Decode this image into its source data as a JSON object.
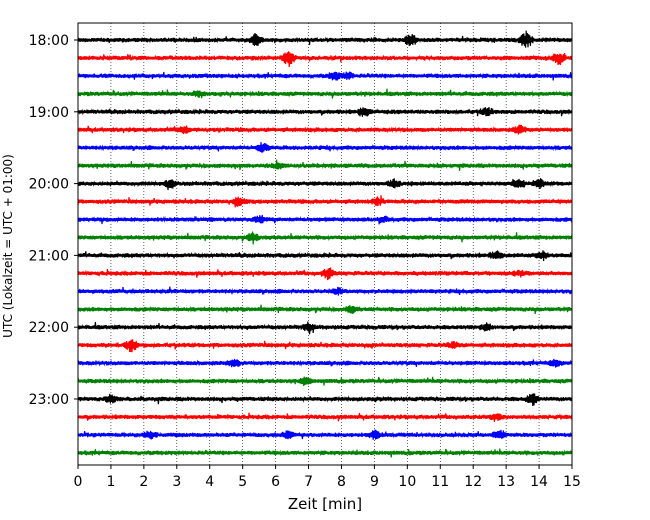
{
  "chart_data": {
    "type": "line",
    "title": "",
    "xlabel": "Zeit  [min]",
    "ylabel": "UTC (Lokalzeit = UTC + 01:00)",
    "xlim": [
      0,
      15
    ],
    "xticks": [
      0,
      1,
      2,
      3,
      4,
      5,
      6,
      7,
      8,
      9,
      10,
      11,
      12,
      13,
      14,
      15
    ],
    "grid": "vertical dotted",
    "legend": "none",
    "row_minutes": 15,
    "yticks": [
      {
        "label": "18:00",
        "row": 0
      },
      {
        "label": "19:00",
        "row": 4
      },
      {
        "label": "20:00",
        "row": 8
      },
      {
        "label": "21:00",
        "row": 12
      },
      {
        "label": "22:00",
        "row": 16
      },
      {
        "label": "23:00",
        "row": 20
      }
    ],
    "trace_colors": [
      "#000000",
      "#ff0000",
      "#0000ff",
      "#008000"
    ],
    "traces": [
      {
        "start": "18:00",
        "events": [
          {
            "t": 5.4,
            "amp": 1.0
          },
          {
            "t": 10.1,
            "amp": 1.0
          },
          {
            "t": 13.6,
            "amp": 1.3
          }
        ]
      },
      {
        "start": "18:15",
        "events": [
          {
            "t": 6.4,
            "amp": 1.3
          },
          {
            "t": 14.6,
            "amp": 1.0
          }
        ]
      },
      {
        "start": "18:30",
        "events": [
          {
            "t": 7.8,
            "amp": 0.6
          },
          {
            "t": 8.2,
            "amp": 0.6
          }
        ]
      },
      {
        "start": "18:45",
        "events": [
          {
            "t": 3.7,
            "amp": 0.5
          }
        ]
      },
      {
        "start": "19:00",
        "events": [
          {
            "t": 8.7,
            "amp": 0.8
          },
          {
            "t": 12.4,
            "amp": 0.7
          }
        ]
      },
      {
        "start": "19:15",
        "events": [
          {
            "t": 3.2,
            "amp": 0.6
          },
          {
            "t": 13.4,
            "amp": 0.7
          }
        ]
      },
      {
        "start": "19:30",
        "events": [
          {
            "t": 5.6,
            "amp": 0.7
          }
        ]
      },
      {
        "start": "19:45",
        "events": [
          {
            "t": 6.1,
            "amp": 0.5
          }
        ]
      },
      {
        "start": "20:00",
        "events": [
          {
            "t": 2.8,
            "amp": 0.6
          },
          {
            "t": 9.6,
            "amp": 0.7
          },
          {
            "t": 13.4,
            "amp": 0.8
          },
          {
            "t": 14.0,
            "amp": 0.7
          }
        ]
      },
      {
        "start": "20:15",
        "events": [
          {
            "t": 4.9,
            "amp": 0.9
          },
          {
            "t": 9.1,
            "amp": 0.5
          }
        ]
      },
      {
        "start": "20:30",
        "events": [
          {
            "t": 5.5,
            "amp": 0.6
          },
          {
            "t": 9.3,
            "amp": 0.5
          }
        ]
      },
      {
        "start": "20:45",
        "events": [
          {
            "t": 5.3,
            "amp": 0.8
          }
        ]
      },
      {
        "start": "21:00",
        "events": [
          {
            "t": 12.7,
            "amp": 0.7
          },
          {
            "t": 14.1,
            "amp": 0.6
          }
        ]
      },
      {
        "start": "21:15",
        "events": [
          {
            "t": 7.6,
            "amp": 0.9
          },
          {
            "t": 13.4,
            "amp": 0.5
          }
        ]
      },
      {
        "start": "21:30",
        "events": [
          {
            "t": 7.9,
            "amp": 0.5
          }
        ]
      },
      {
        "start": "21:45",
        "events": [
          {
            "t": 8.3,
            "amp": 0.5
          }
        ]
      },
      {
        "start": "22:00",
        "events": [
          {
            "t": 7.0,
            "amp": 0.7
          },
          {
            "t": 12.4,
            "amp": 0.5
          }
        ]
      },
      {
        "start": "22:15",
        "events": [
          {
            "t": 1.6,
            "amp": 1.1
          },
          {
            "t": 11.4,
            "amp": 0.5
          }
        ]
      },
      {
        "start": "22:30",
        "events": [
          {
            "t": 4.7,
            "amp": 0.6
          },
          {
            "t": 14.5,
            "amp": 0.5
          }
        ]
      },
      {
        "start": "22:45",
        "events": [
          {
            "t": 6.9,
            "amp": 0.5
          }
        ]
      },
      {
        "start": "23:00",
        "events": [
          {
            "t": 1.0,
            "amp": 0.7
          },
          {
            "t": 13.8,
            "amp": 1.0
          }
        ]
      },
      {
        "start": "23:15",
        "events": [
          {
            "t": 12.7,
            "amp": 0.5
          }
        ]
      },
      {
        "start": "23:30",
        "events": [
          {
            "t": 2.2,
            "amp": 0.6
          },
          {
            "t": 6.4,
            "amp": 0.6
          },
          {
            "t": 9.0,
            "amp": 0.6
          },
          {
            "t": 12.8,
            "amp": 0.8
          }
        ]
      },
      {
        "start": "23:45",
        "events": []
      }
    ]
  }
}
